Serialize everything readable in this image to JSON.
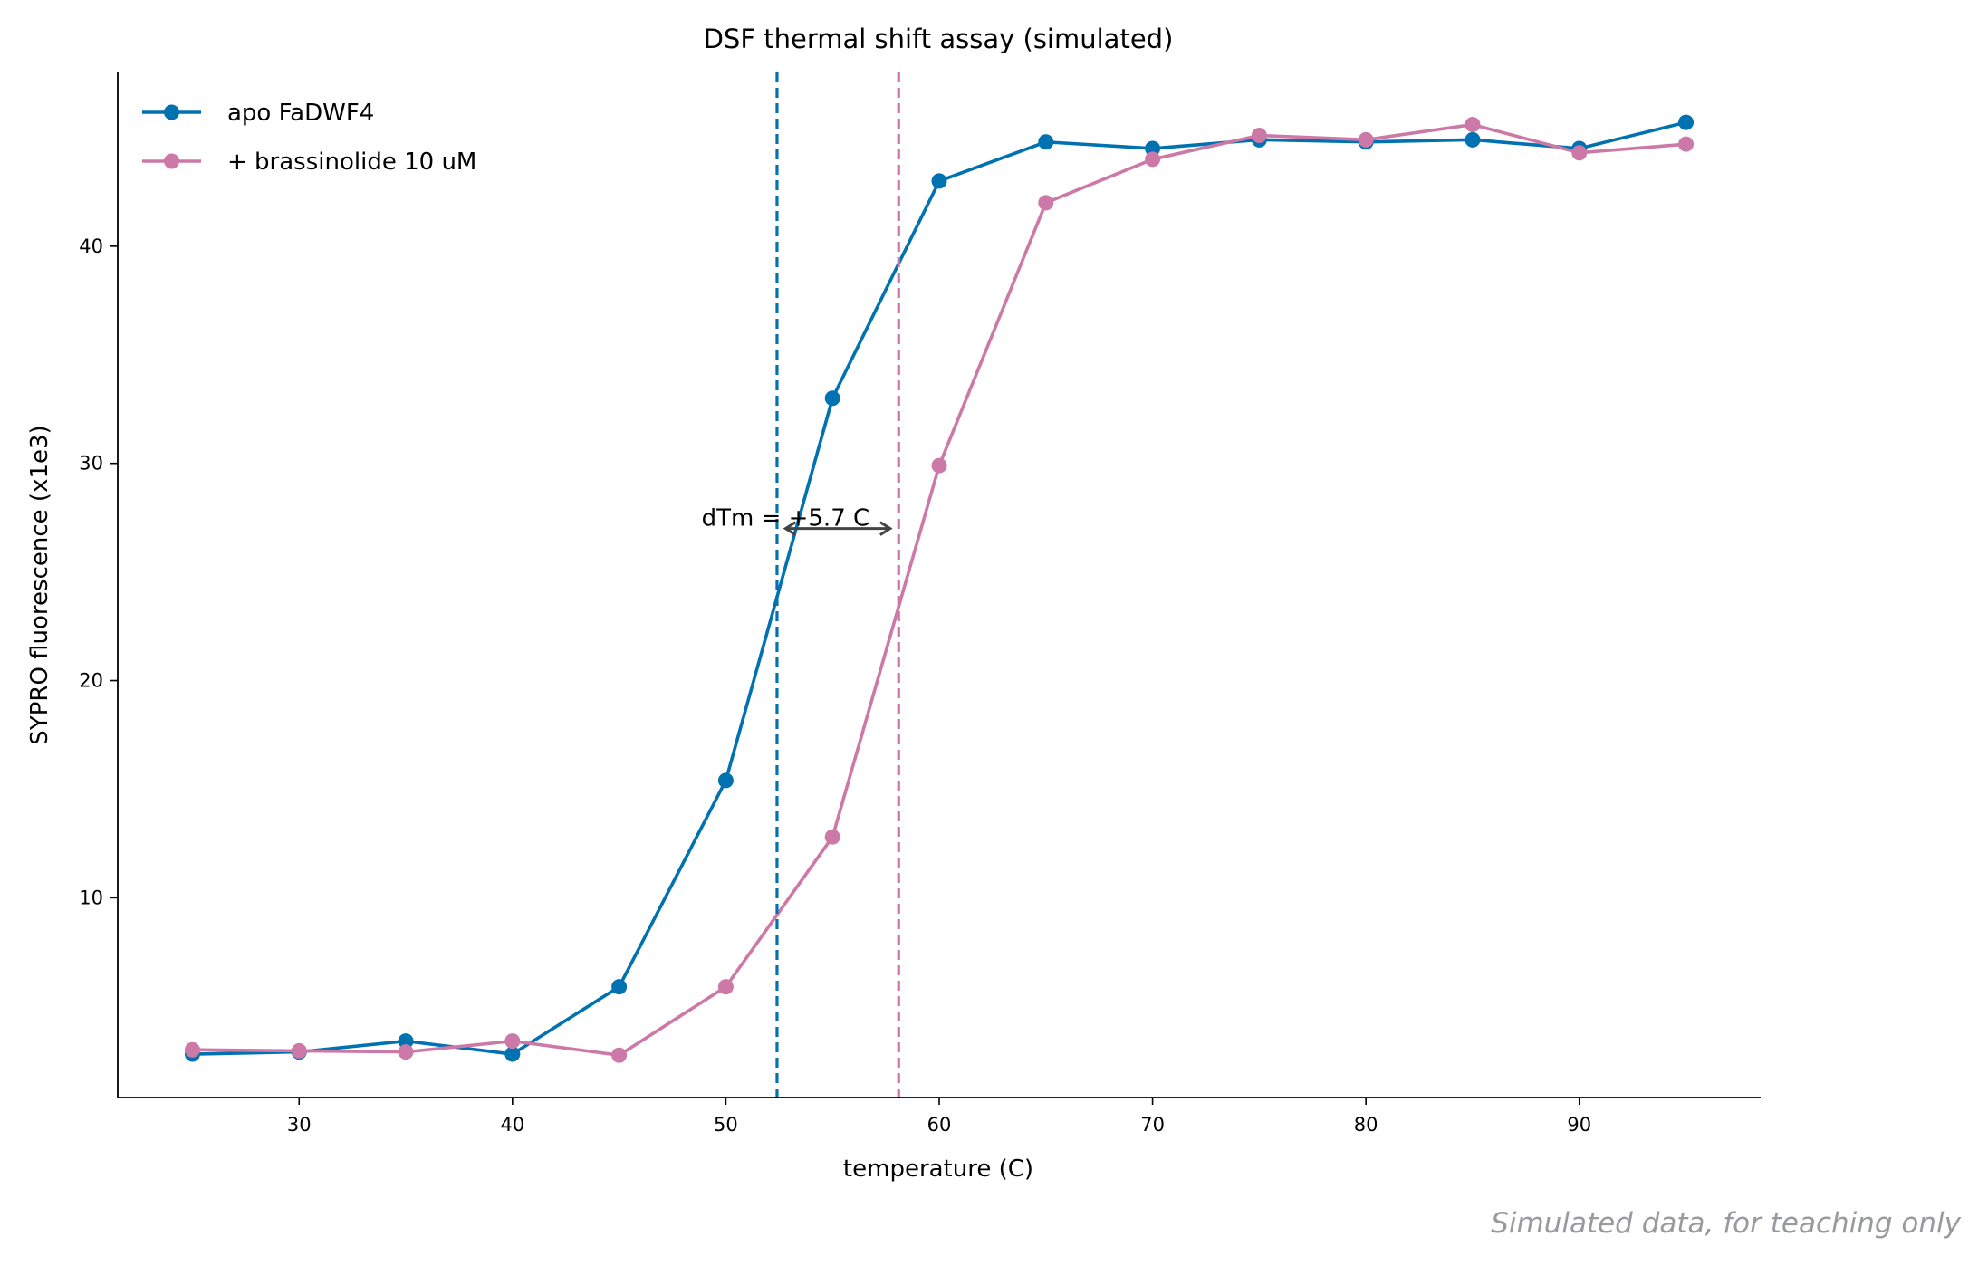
{
  "chart_data": {
    "type": "line",
    "title": "DSF thermal shift assay (simulated)",
    "xlabel": "temperature (C)",
    "ylabel": "SYPRO fluorescence (x1e3)",
    "xlim": [
      21.5,
      98.5
    ],
    "ylim": [
      0.8,
      48
    ],
    "xticks": [
      30,
      40,
      50,
      60,
      70,
      80,
      90
    ],
    "yticks": [
      10,
      20,
      30,
      40
    ],
    "grid": false,
    "legend_position": "top-left",
    "x": [
      25,
      30,
      35,
      40,
      45,
      50,
      55,
      60,
      65,
      70,
      75,
      80,
      85,
      90,
      95
    ],
    "series": [
      {
        "name": "apo FaDWF4",
        "color": "#0072b2",
        "values": [
          2.8,
          2.9,
          3.4,
          2.8,
          5.9,
          15.4,
          33.0,
          43.0,
          44.8,
          44.5,
          44.9,
          44.8,
          44.9,
          44.5,
          45.7
        ]
      },
      {
        "name": "+ brassinolide 10 uM",
        "color": "#cc79a7",
        "values": [
          3.0,
          2.95,
          2.9,
          3.4,
          2.75,
          5.9,
          12.8,
          29.9,
          42.0,
          44.0,
          45.1,
          44.9,
          45.6,
          44.3,
          44.7
        ]
      }
    ],
    "vlines": [
      {
        "x": 52.4,
        "color": "#0072b2",
        "style": "dashed"
      },
      {
        "x": 58.1,
        "color": "#cc79a7",
        "style": "dashed"
      }
    ],
    "annotation": {
      "text": "dTm = +5.7 C",
      "arrow_from": 52.8,
      "arrow_to": 57.7,
      "arrow_y": 27.0,
      "text_x": 52.8,
      "text_y": 27.5
    },
    "footnote": "Simulated data, for teaching only"
  }
}
